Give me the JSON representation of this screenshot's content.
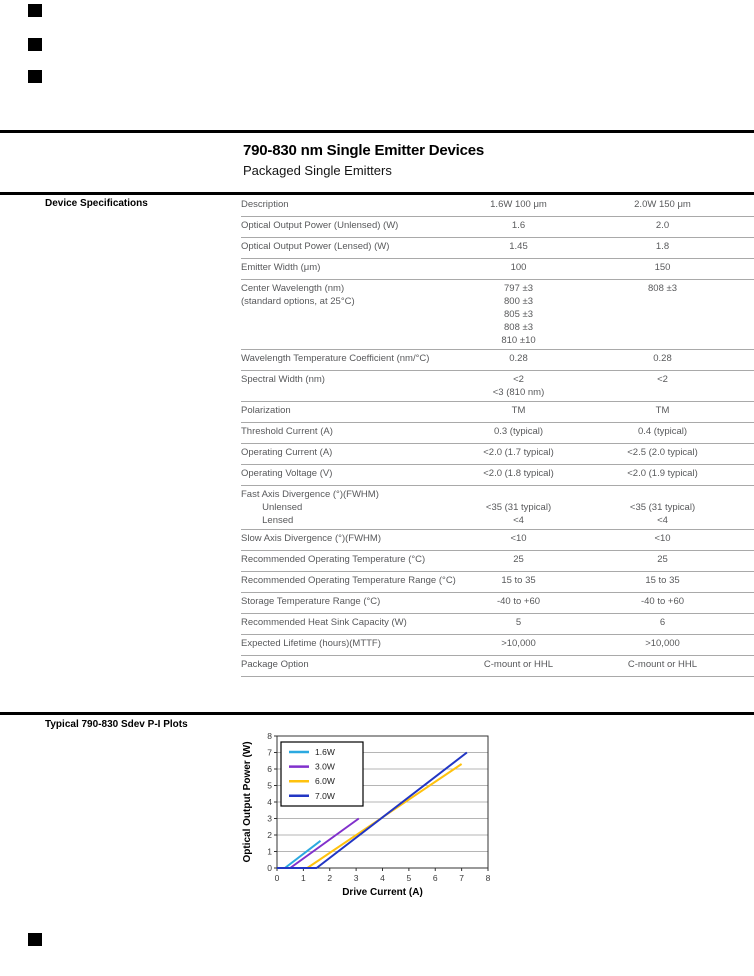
{
  "page": {
    "title": "790-830 nm Single Emitter Devices",
    "subtitle": "Packaged Single Emitters",
    "section_label": "Device Specifications",
    "plots_label": "Typical 790-830 Sdev P-I Plots"
  },
  "table": {
    "header": {
      "label": "Description",
      "v1": "1.6W 100 μm",
      "v2": "2.0W 150 μm"
    },
    "rows": [
      {
        "label": "Optical Output Power (Unlensed) (W)",
        "v1": "1.6",
        "v2": "2.0"
      },
      {
        "label": "Optical Output Power (Lensed) (W)",
        "v1": "1.45",
        "v2": "1.8"
      },
      {
        "label": "Emitter Width (μm)",
        "v1": "100",
        "v2": "150"
      },
      {
        "label": "Center Wavelength (nm)\n(standard options, at 25°C)",
        "v1": "797 ±3\n800 ±3\n805 ±3\n808 ±3\n810 ±10",
        "v2": "808 ±3"
      },
      {
        "label": "Wavelength Temperature Coefficient (nm/°C)",
        "v1": "0.28",
        "v2": "0.28"
      },
      {
        "label": "Spectral Width (nm)",
        "v1": "<2\n<3 (810 nm)",
        "v2": "<2"
      },
      {
        "label": "Polarization",
        "v1": "TM",
        "v2": "TM"
      },
      {
        "label": "Threshold Current (A)",
        "v1": "0.3 (typical)",
        "v2": "0.4 (typical)"
      },
      {
        "label": "Operating Current (A)",
        "v1": "<2.0 (1.7 typical)",
        "v2": "<2.5 (2.0 typical)"
      },
      {
        "label": "Operating Voltage (V)",
        "v1": "<2.0 (1.8 typical)",
        "v2": "<2.0 (1.9 typical)"
      },
      {
        "label": "Fast Axis Divergence (°)(FWHM)\n        Unlensed\n        Lensed",
        "v1": "\n<35 (31 typical)\n<4",
        "v2": "\n<35 (31 typical)\n<4"
      },
      {
        "label": "Slow Axis Divergence (°)(FWHM)",
        "v1": "<10",
        "v2": "<10"
      },
      {
        "label": "Recommended Operating Temperature (°C)",
        "v1": "25",
        "v2": "25"
      },
      {
        "label": "Recommended Operating Temperature Range (°C)",
        "v1": "15 to 35",
        "v2": "15 to 35"
      },
      {
        "label": "Storage Temperature Range (°C)",
        "v1": "-40 to +60",
        "v2": "-40 to +60"
      },
      {
        "label": "Recommended Heat Sink Capacity (W)",
        "v1": "5",
        "v2": "6"
      },
      {
        "label": "Expected Lifetime (hours)(MTTF)",
        "v1": ">10,000",
        "v2": ">10,000"
      },
      {
        "label": "Package Option",
        "v1": "C-mount or HHL",
        "v2": "C-mount or HHL"
      }
    ]
  },
  "chart_data": {
    "type": "line",
    "title": "",
    "xlabel": "Drive Current (A)",
    "ylabel": "Optical Output Power (W)",
    "xlim": [
      0,
      8
    ],
    "ylim": [
      0,
      8
    ],
    "xticks": [
      0,
      1,
      2,
      3,
      4,
      5,
      6,
      7,
      8
    ],
    "yticks": [
      0,
      1,
      2,
      3,
      4,
      5,
      6,
      7,
      8
    ],
    "grid": "horizontal",
    "legend_position": "top-left",
    "series": [
      {
        "name": "1.6W",
        "color": "#2BA9E0",
        "points": [
          [
            0,
            0
          ],
          [
            0.3,
            0
          ],
          [
            1.65,
            1.65
          ]
        ]
      },
      {
        "name": "3.0W",
        "color": "#8130CC",
        "points": [
          [
            0,
            0
          ],
          [
            0.5,
            0
          ],
          [
            3.1,
            3.0
          ]
        ]
      },
      {
        "name": "6.0W",
        "color": "#FFC20E",
        "points": [
          [
            0,
            0
          ],
          [
            1.15,
            0
          ],
          [
            7.0,
            6.3
          ]
        ]
      },
      {
        "name": "7.0W",
        "color": "#2236C4",
        "points": [
          [
            0,
            0
          ],
          [
            1.5,
            0
          ],
          [
            7.2,
            7.0
          ]
        ]
      }
    ],
    "colors": {
      "grid": "#b5b5b5",
      "plot_border": "#333333",
      "tick_text": "#3a3a3a"
    }
  }
}
